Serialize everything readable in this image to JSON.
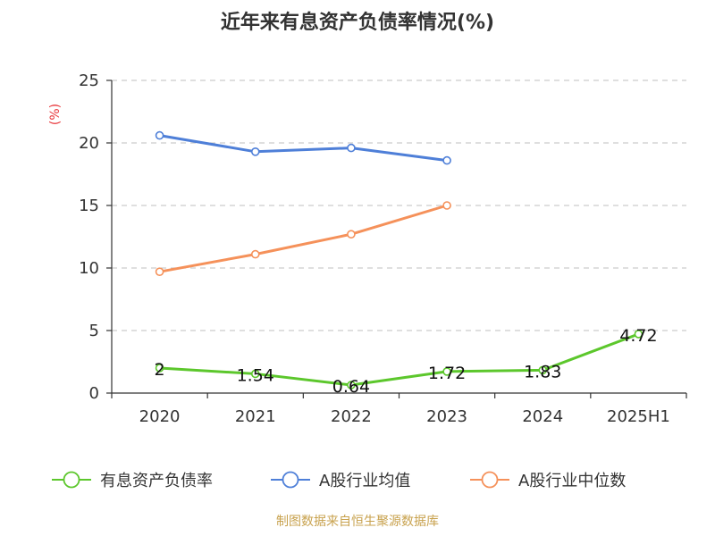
{
  "chart_data": {
    "type": "line",
    "title": "近年来有息资产负债率情况(%)",
    "ylabel": "(%)",
    "categories": [
      "2020",
      "2021",
      "2022",
      "2023",
      "2024",
      "2025H1"
    ],
    "ylim": [
      0,
      25
    ],
    "yticks": [
      "0",
      "5",
      "10",
      "15",
      "20",
      "25"
    ],
    "grid": true,
    "legend_position": "bottom",
    "series": [
      {
        "name": "有息资产负债率",
        "color": "#5cc72c",
        "values": [
          2,
          1.54,
          0.64,
          1.72,
          1.83,
          4.72
        ],
        "labels": [
          "2",
          "1.54",
          "0.64",
          "1.72",
          "1.83",
          "4.72"
        ]
      },
      {
        "name": "A股行业均值",
        "color": "#4e7fd8",
        "values": [
          20.6,
          19.3,
          19.6,
          18.6,
          null,
          null
        ]
      },
      {
        "name": "A股行业中位数",
        "color": "#f5915a",
        "values": [
          9.7,
          11.1,
          12.7,
          15.0,
          null,
          null
        ]
      }
    ]
  },
  "colors": {
    "ylabel": "#e8363a",
    "source": "#c8a24e",
    "grid": "#cccccc",
    "axis": "#333333"
  },
  "source_text": "制图数据来自恒生聚源数据库"
}
